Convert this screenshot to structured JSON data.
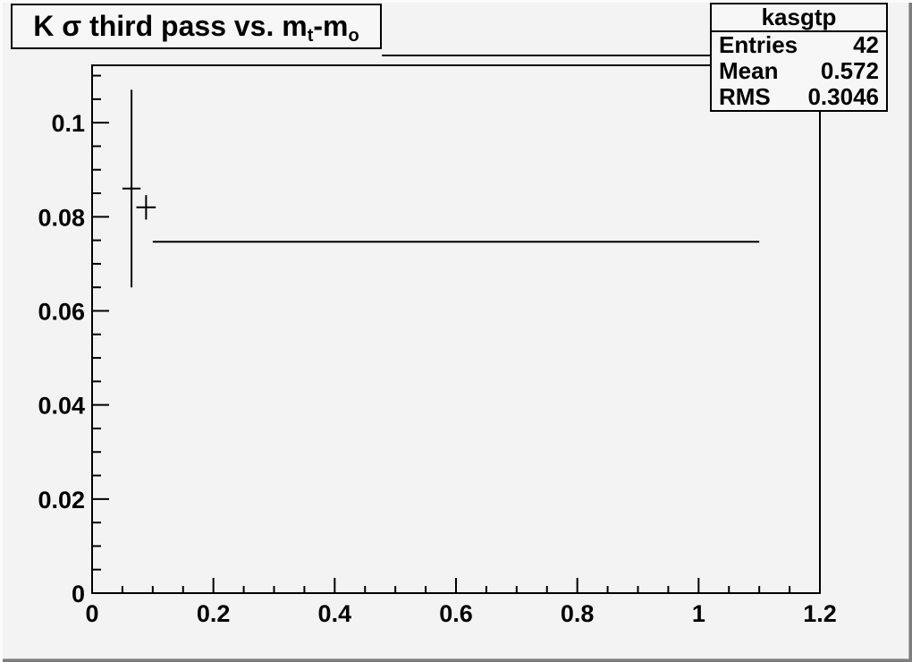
{
  "canvas": {
    "background_color": "#f3f3f3",
    "frame_line_color": "#000000"
  },
  "title_box": {
    "run1": "K σ third pass vs. m",
    "sub1": "t",
    "run2": "-m",
    "sub2": "o",
    "plain": "K σ third pass vs. m_t-m_o"
  },
  "stats_box": {
    "name": "kasgtp",
    "rows": [
      {
        "label": "Entries",
        "value": "42"
      },
      {
        "label": "Mean",
        "value": "0.572"
      },
      {
        "label": "RMS",
        "value": "0.3046"
      }
    ]
  },
  "chart_data": {
    "type": "scatter",
    "subtype": "profile-histogram-with-error-bars",
    "title": "K σ third pass vs. m_t-m_o",
    "histogram_name": "kasgtp",
    "entries": 42,
    "mean": 0.572,
    "rms": 0.3046,
    "xlabel": "",
    "ylabel": "",
    "xlim": [
      0,
      1.2
    ],
    "ylim": [
      0,
      0.1122
    ],
    "grid": false,
    "legend_position": "none",
    "x_major_ticks": [
      0,
      0.2,
      0.4,
      0.6,
      0.8,
      1,
      1.2
    ],
    "x_tick_labels": [
      "0",
      "0.2",
      "0.4",
      "0.6",
      "0.8",
      "1",
      "1.2"
    ],
    "x_minor_step": 0.05,
    "y_major_ticks": [
      0,
      0.02,
      0.04,
      0.06,
      0.08,
      0.1
    ],
    "y_tick_labels": [
      "0",
      "0.02",
      "0.04",
      "0.06",
      "0.08",
      "0.1"
    ],
    "y_minor_step": 0.005,
    "points": [
      {
        "x": 0.065,
        "y": 0.086,
        "xerr": 0.015,
        "yerr": 0.021
      },
      {
        "x": 0.089,
        "y": 0.082,
        "xerr": 0.016,
        "yerr": 0.0026
      },
      {
        "x": 0.6,
        "y": 0.0747,
        "xerr": 0.5,
        "yerr": 0
      }
    ],
    "extra_line": {
      "x1": 0.478,
      "x2": 1.019,
      "y": 0.1143
    }
  }
}
